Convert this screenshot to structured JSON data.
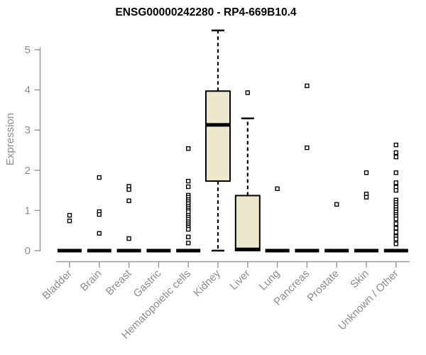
{
  "chart_data": {
    "type": "boxplot",
    "title": "ENSG00000242280 - RP4-669B10.4",
    "ylabel": "Expression",
    "xlabel": "",
    "ylim": [
      0,
      5.6
    ],
    "yticks": [
      0,
      1,
      2,
      3,
      4,
      5
    ],
    "grid": false,
    "legend": "none",
    "categories": [
      "Bladder",
      "Brain",
      "Breast",
      "Gastric",
      "Hematopoietic cells",
      "Kidney",
      "Liver",
      "Lung",
      "Pancreas",
      "Prostate",
      "Skin",
      "Unknown / Other"
    ],
    "series": [
      {
        "category": "Bladder",
        "min": 0,
        "q1": 0,
        "median": 0,
        "q3": 0,
        "max": 0,
        "outliers": [
          0.88,
          0.74
        ]
      },
      {
        "category": "Brain",
        "min": 0,
        "q1": 0,
        "median": 0,
        "q3": 0,
        "max": 0,
        "outliers": [
          1.82,
          0.97,
          0.9,
          0.43
        ]
      },
      {
        "category": "Breast",
        "min": 0,
        "q1": 0,
        "median": 0,
        "q3": 0,
        "max": 0,
        "outliers": [
          1.6,
          1.52,
          1.24,
          0.3
        ]
      },
      {
        "category": "Gastric",
        "min": 0,
        "q1": 0,
        "median": 0,
        "q3": 0,
        "max": 0,
        "outliers": []
      },
      {
        "category": "Hematopoietic cells",
        "min": 0,
        "q1": 0,
        "median": 0,
        "q3": 0,
        "max": 0,
        "outliers": [
          2.54,
          1.73,
          1.59,
          1.38,
          1.33,
          1.27,
          1.22,
          1.17,
          1.11,
          1.06,
          1.01,
          0.97,
          0.88,
          0.83,
          0.78,
          0.72,
          0.67,
          0.62,
          0.58,
          0.53,
          0.34,
          0.19
        ]
      },
      {
        "category": "Kidney",
        "min": 0,
        "q1": 1.73,
        "median": 3.13,
        "q3": 3.97,
        "max": 5.48,
        "outliers": []
      },
      {
        "category": "Liver",
        "min": 0,
        "q1": 0,
        "median": 0.03,
        "q3": 1.37,
        "max": 3.29,
        "outliers": [
          3.93
        ]
      },
      {
        "category": "Lung",
        "min": 0,
        "q1": 0,
        "median": 0,
        "q3": 0,
        "max": 0,
        "outliers": [
          1.54
        ]
      },
      {
        "category": "Pancreas",
        "min": 0,
        "q1": 0,
        "median": 0,
        "q3": 0,
        "max": 0,
        "outliers": [
          4.1,
          2.56
        ]
      },
      {
        "category": "Prostate",
        "min": 0,
        "q1": 0,
        "median": 0,
        "q3": 0,
        "max": 0,
        "outliers": [
          1.15
        ]
      },
      {
        "category": "Skin",
        "min": 0,
        "q1": 0,
        "median": 0,
        "q3": 0,
        "max": 0,
        "outliers": [
          1.94,
          1.41,
          1.33
        ]
      },
      {
        "category": "Unknown / Other",
        "min": 0,
        "q1": 0,
        "median": 0,
        "q3": 0,
        "max": 0,
        "outliers": [
          2.63,
          2.44,
          2.33,
          1.94,
          1.69,
          1.58,
          1.5,
          1.26,
          1.2,
          1.14,
          1.08,
          1.02,
          0.96,
          0.9,
          0.85,
          0.79,
          0.67,
          0.56,
          0.46,
          0.35,
          0.29,
          0.17
        ]
      }
    ],
    "colors": {
      "box_fill": "#ede8cc",
      "box_stroke": "#000000",
      "median": "#000000",
      "whisker": "#000000",
      "outlier_stroke": "#000000",
      "outlier_fill": "#ffffff",
      "axis_line": "#9a9a9a",
      "tick_text": "#8c8c8c",
      "title_text": "#000000",
      "background": "#ffffff"
    }
  }
}
